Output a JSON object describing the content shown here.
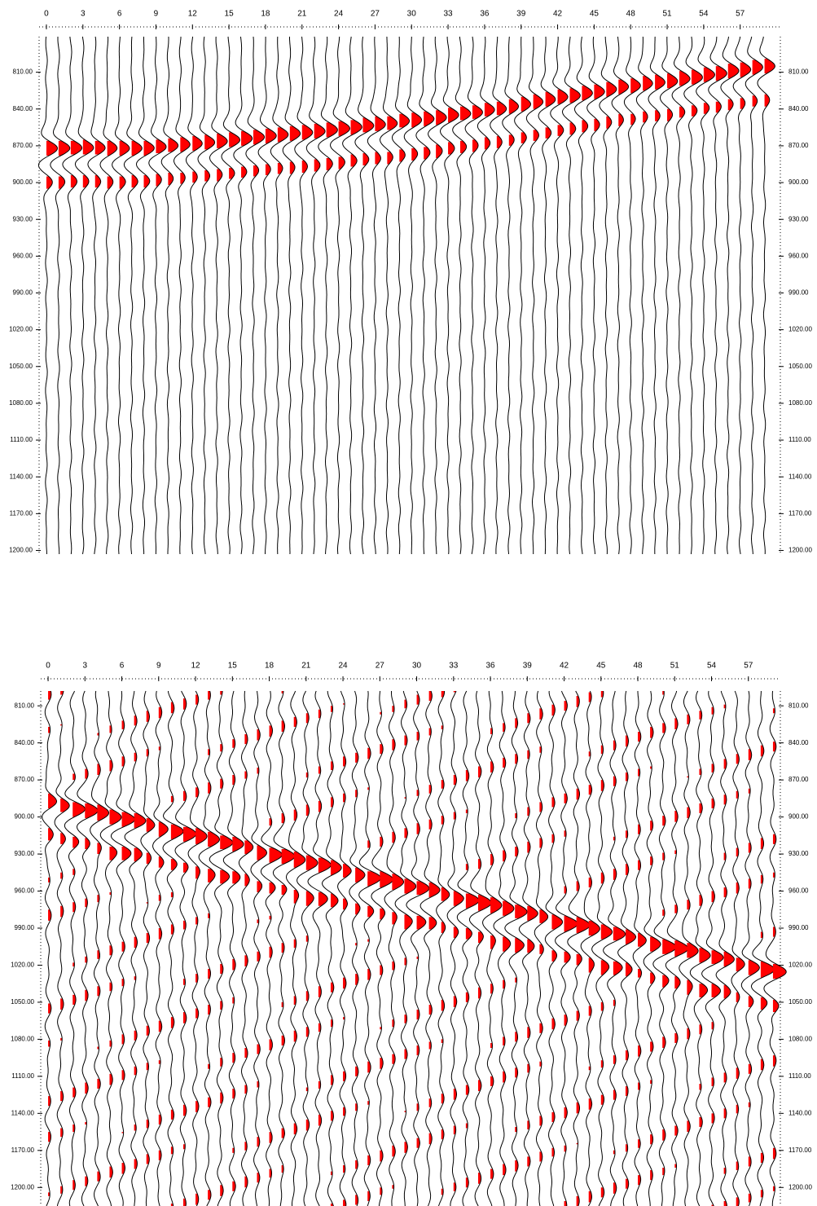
{
  "chart_data": [
    {
      "type": "wiggle",
      "xticks": [
        0,
        3,
        6,
        9,
        12,
        15,
        18,
        21,
        24,
        27,
        30,
        33,
        36,
        39,
        42,
        45,
        48,
        51,
        54,
        57
      ],
      "xlim": [
        -0.6,
        60.3
      ],
      "ylim": [
        781,
        1203
      ],
      "yticks": [
        {
          "value": 810,
          "label": "810.00"
        },
        {
          "value": 840,
          "label": "840.00"
        },
        {
          "value": 870,
          "label": "870.00"
        },
        {
          "value": 900,
          "label": "900.00"
        },
        {
          "value": 930,
          "label": "930.00"
        },
        {
          "value": 960,
          "label": "960.00"
        },
        {
          "value": 990,
          "label": "990.00"
        },
        {
          "value": 1020,
          "label": "1020.00"
        },
        {
          "value": 1050,
          "label": "1050.00"
        },
        {
          "value": 1080,
          "label": "1080.00"
        },
        {
          "value": 1110,
          "label": "1110.00"
        },
        {
          "value": 1140,
          "label": "1140.00"
        },
        {
          "value": 1170,
          "label": "1170.00"
        },
        {
          "value": 1200,
          "label": "1200.00"
        }
      ],
      "color": "#ff0000",
      "arrivals": [
        872,
        872,
        872,
        872,
        872,
        872,
        872,
        872,
        872,
        871,
        870,
        869,
        868,
        867,
        866,
        865,
        864,
        863,
        862,
        861,
        860,
        859,
        858,
        857,
        856,
        855,
        854,
        853,
        852,
        850,
        849,
        848,
        847,
        845,
        844,
        843,
        841,
        840,
        838,
        836,
        834,
        832,
        830,
        829,
        827,
        826,
        824,
        822,
        821,
        819,
        818,
        817,
        815,
        814,
        812,
        811,
        809,
        808,
        806,
        805
      ]
    },
    {
      "type": "wiggle",
      "xticks": [
        0,
        3,
        6,
        9,
        12,
        15,
        18,
        21,
        24,
        27,
        30,
        33,
        36,
        39,
        42,
        45,
        48,
        51,
        54,
        57
      ],
      "xlim": [
        -0.6,
        59.6
      ],
      "ylim": [
        798,
        1215
      ],
      "yticks": [
        {
          "value": 810,
          "label": "810.00"
        },
        {
          "value": 840,
          "label": "840.00"
        },
        {
          "value": 870,
          "label": "870.00"
        },
        {
          "value": 900,
          "label": "900.00"
        },
        {
          "value": 930,
          "label": "930.00"
        },
        {
          "value": 960,
          "label": "960.00"
        },
        {
          "value": 990,
          "label": "990.00"
        },
        {
          "value": 1020,
          "label": "1020.00"
        },
        {
          "value": 1050,
          "label": "1050.00"
        },
        {
          "value": 1080,
          "label": "1080.00"
        },
        {
          "value": 1110,
          "label": "1110.00"
        },
        {
          "value": 1140,
          "label": "1140.00"
        },
        {
          "value": 1170,
          "label": "1170.00"
        },
        {
          "value": 1200,
          "label": "1200.00"
        }
      ],
      "color": "#ff0000",
      "arrivals": [
        888,
        890,
        893,
        895,
        897,
        900,
        902,
        904,
        907,
        909,
        911,
        914,
        916,
        918,
        921,
        923,
        925,
        928,
        930,
        932,
        935,
        937,
        939,
        942,
        944,
        946,
        949,
        951,
        953,
        956,
        958,
        960,
        963,
        965,
        967,
        970,
        972,
        974,
        977,
        979,
        981,
        984,
        986,
        988,
        991,
        993,
        995,
        998,
        1000,
        1002,
        1005,
        1007,
        1009,
        1012,
        1014,
        1016,
        1019,
        1021,
        1023,
        1026
      ]
    }
  ]
}
